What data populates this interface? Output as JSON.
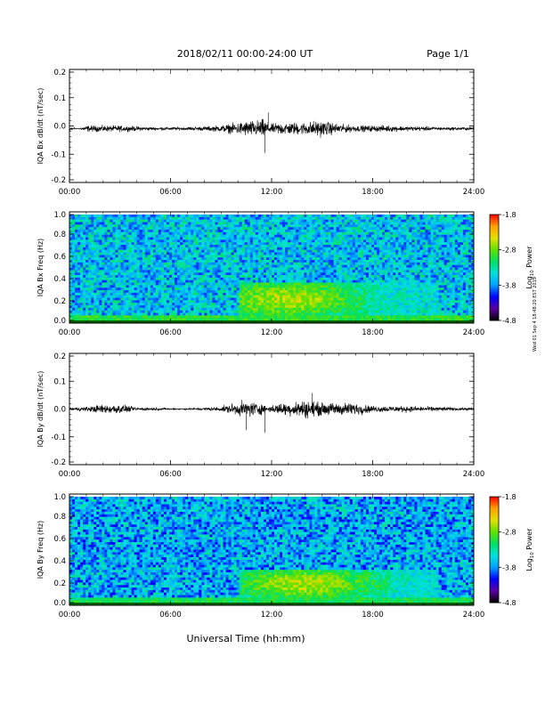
{
  "header": {
    "date_range": "2018/02/11  00:00-24:00 UT",
    "page_label": "Page 1/1"
  },
  "footer": {
    "xlabel": "Universal Time (hh:mm)",
    "stamp": "Wed 01 Sep 4 18:48:20 EST 2019"
  },
  "colorbar": {
    "label_prefix": "Log",
    "label_sub": "10",
    "label_suffix": " Power",
    "ticks": [
      "-1.8",
      "-2.8",
      "-3.8",
      "-4.8"
    ],
    "colors": [
      "#000000",
      "#5a00a0",
      "#0000ff",
      "#00a0ff",
      "#00e0e0",
      "#00e060",
      "#60e000",
      "#e0e000",
      "#ffa000",
      "#ff0000"
    ]
  },
  "chart_data": [
    {
      "type": "line",
      "title": "",
      "xlabel": "",
      "ylabel": "IQA Bx dB/dt (nT/sec)",
      "xlim": [
        0,
        24
      ],
      "ylim": [
        -0.2,
        0.2
      ],
      "x_ticks": [
        "00:00",
        "06:00",
        "12:00",
        "18:00",
        "24:00"
      ],
      "y_ticks": [
        "0.2",
        "0.1",
        "0.0",
        "-0.1",
        "-0.2"
      ],
      "series": [
        {
          "x": [
            0,
            1,
            2,
            3,
            4,
            5,
            6,
            7,
            8,
            9,
            9.5,
            10,
            10.5,
            11,
            11.5,
            12,
            12.5,
            13,
            13.5,
            14,
            14.5,
            15,
            16,
            17,
            18,
            19,
            20,
            21,
            22,
            23,
            24
          ],
          "y": [
            -0.02,
            0.02,
            0.02,
            0.02,
            0.015,
            0.01,
            0.01,
            0.01,
            0.015,
            0.02,
            0.03,
            0.04,
            0.05,
            0.05,
            0.06,
            0.03,
            0.04,
            0.04,
            0.04,
            0.04,
            0.05,
            0.05,
            0.03,
            0.02,
            0.02,
            0.02,
            0.015,
            0.015,
            0.01,
            0.01,
            0.01
          ]
        }
      ],
      "notable_spikes": [
        {
          "x": 11.6,
          "y": -0.1
        },
        {
          "x": 11.8,
          "y": 0.05
        }
      ]
    },
    {
      "type": "heatmap",
      "title": "",
      "xlabel": "",
      "ylabel": "IQA Bx Freq (Hz)",
      "xlim": [
        0,
        24
      ],
      "ylim": [
        0,
        1.0
      ],
      "x_ticks": [
        "00:00",
        "06:00",
        "12:00",
        "18:00",
        "24:00"
      ],
      "y_ticks": [
        "1.0",
        "0.8",
        "0.6",
        "0.4",
        "0.2",
        "0.0"
      ],
      "zlabel": "Log10 Power",
      "zlim": [
        -4.8,
        -1.8
      ],
      "enhanced_region": {
        "time_start": 10,
        "time_end": 22,
        "freq_start": 0.0,
        "freq_end": 0.35,
        "peak_time": 13,
        "peak_freq": 0.2,
        "peak_power": -2.6
      },
      "background_power": -3.6
    },
    {
      "type": "line",
      "title": "",
      "xlabel": "",
      "ylabel": "IQA By dB/dt (nT/sec)",
      "xlim": [
        0,
        24
      ],
      "ylim": [
        -0.2,
        0.2
      ],
      "x_ticks": [
        "00:00",
        "06:00",
        "12:00",
        "18:00",
        "24:00"
      ],
      "y_ticks": [
        "0.2",
        "0.1",
        "0.0",
        "-0.1",
        "-0.2"
      ],
      "series": [
        {
          "x": [
            0,
            1,
            2,
            3,
            4,
            5,
            6,
            7,
            8,
            9,
            9.5,
            10,
            10.5,
            11,
            11.5,
            12,
            12.5,
            13,
            13.5,
            14,
            14.5,
            15,
            16,
            17,
            18,
            19,
            20,
            21,
            22,
            23,
            24
          ],
          "y": [
            0.01,
            0.015,
            0.03,
            0.03,
            0.01,
            0.01,
            0.005,
            0.005,
            0.01,
            0.015,
            0.03,
            0.04,
            0.05,
            0.05,
            0.03,
            0.02,
            0.04,
            0.04,
            0.05,
            0.06,
            0.05,
            0.04,
            0.04,
            0.04,
            0.02,
            0.02,
            0.02,
            0.015,
            0.015,
            0.01,
            0.01
          ]
        }
      ],
      "notable_spikes": [
        {
          "x": 10.5,
          "y": -0.08
        },
        {
          "x": 11.6,
          "y": -0.09
        },
        {
          "x": 14.4,
          "y": 0.06
        }
      ]
    },
    {
      "type": "heatmap",
      "title": "",
      "xlabel": "",
      "ylabel": "IQA By Freq (Hz)",
      "xlim": [
        0,
        24
      ],
      "ylim": [
        0,
        1.0
      ],
      "x_ticks": [
        "00:00",
        "06:00",
        "12:00",
        "18:00",
        "24:00"
      ],
      "y_ticks": [
        "1.0",
        "0.8",
        "0.6",
        "0.4",
        "0.2",
        "0.0"
      ],
      "zlabel": "Log10 Power",
      "zlim": [
        -4.8,
        -1.8
      ],
      "enhanced_region": {
        "time_start": 10,
        "time_end": 22,
        "freq_start": 0.0,
        "freq_end": 0.3,
        "peak_time": 14,
        "peak_freq": 0.18,
        "peak_power": -2.6
      },
      "background_power": -3.7
    }
  ]
}
